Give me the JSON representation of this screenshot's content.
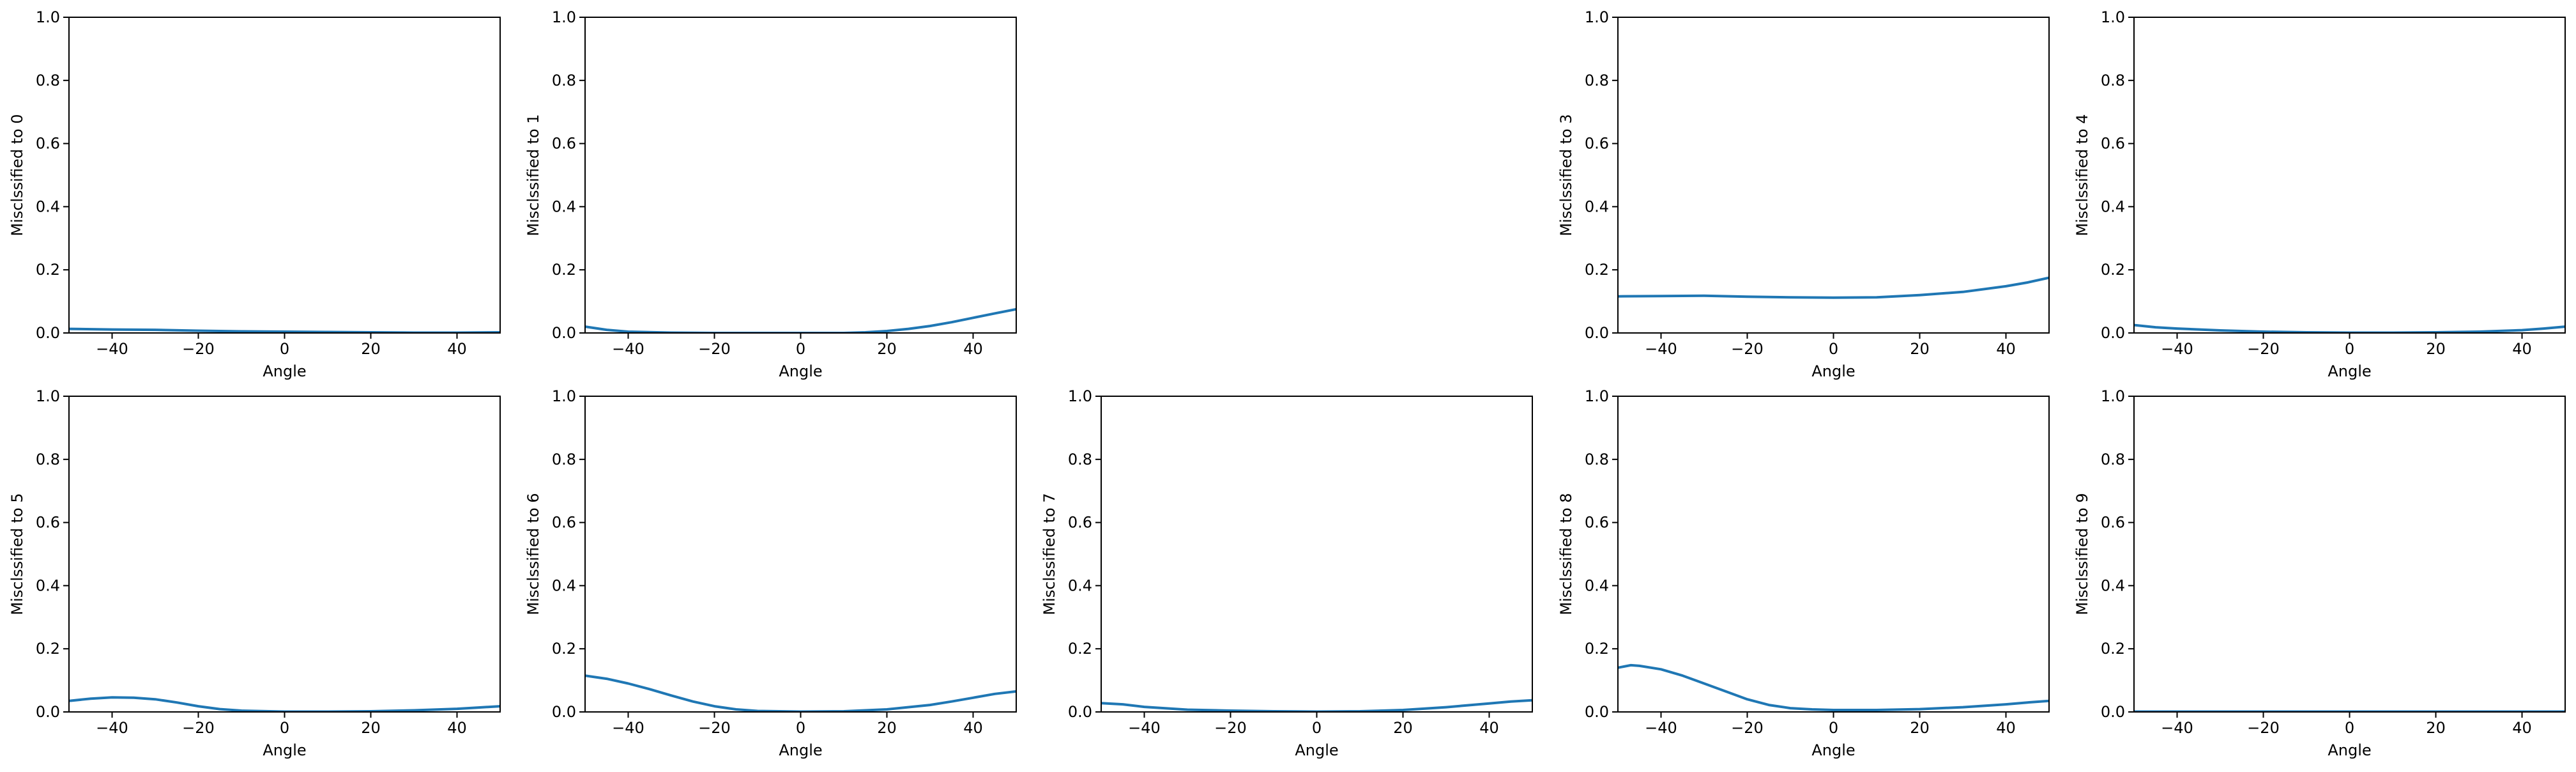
{
  "colors": {
    "line": "#1f77b4",
    "axes": "#000000",
    "background": "#ffffff"
  },
  "chart_data": [
    {
      "type": "line",
      "subplot": "row1-col1",
      "xlabel": "Angle",
      "ylabel": "Misclssified to 0",
      "xlim": [
        -50,
        50
      ],
      "ylim": [
        0,
        1
      ],
      "xticks": [
        -40,
        -20,
        0,
        20,
        40
      ],
      "yticks": [
        0.0,
        0.2,
        0.4,
        0.6,
        0.8,
        1.0
      ],
      "grid": false,
      "series": [
        {
          "x": [
            -50,
            -40,
            -30,
            -20,
            -10,
            0,
            10,
            20,
            30,
            40,
            50
          ],
          "y": [
            0.013,
            0.011,
            0.01,
            0.007,
            0.005,
            0.004,
            0.003,
            0.002,
            0.001,
            0.001,
            0.002
          ]
        }
      ]
    },
    {
      "type": "line",
      "subplot": "row1-col2",
      "xlabel": "Angle",
      "ylabel": "Misclssified to 1",
      "xlim": [
        -50,
        50
      ],
      "ylim": [
        0,
        1
      ],
      "xticks": [
        -40,
        -20,
        0,
        20,
        40
      ],
      "yticks": [
        0.0,
        0.2,
        0.4,
        0.6,
        0.8,
        1.0
      ],
      "grid": false,
      "series": [
        {
          "x": [
            -50,
            -45,
            -40,
            -30,
            -20,
            -10,
            0,
            10,
            15,
            20,
            25,
            30,
            35,
            40,
            45,
            50
          ],
          "y": [
            0.02,
            0.01,
            0.004,
            0.001,
            0.0,
            0.0,
            0.0,
            0.0,
            0.002,
            0.006,
            0.013,
            0.022,
            0.034,
            0.048,
            0.062,
            0.075
          ]
        }
      ]
    },
    {
      "type": "line",
      "subplot": "row1-col4",
      "xlabel": "Angle",
      "ylabel": "Misclssified to 3",
      "xlim": [
        -50,
        50
      ],
      "ylim": [
        0,
        1
      ],
      "xticks": [
        -40,
        -20,
        0,
        20,
        40
      ],
      "yticks": [
        0.0,
        0.2,
        0.4,
        0.6,
        0.8,
        1.0
      ],
      "grid": false,
      "series": [
        {
          "x": [
            -50,
            -40,
            -30,
            -20,
            -10,
            0,
            10,
            20,
            30,
            40,
            45,
            50
          ],
          "y": [
            0.116,
            0.117,
            0.118,
            0.115,
            0.113,
            0.112,
            0.113,
            0.12,
            0.13,
            0.148,
            0.16,
            0.175
          ]
        }
      ]
    },
    {
      "type": "line",
      "subplot": "row1-col5",
      "xlabel": "Angle",
      "ylabel": "Misclssified to 4",
      "xlim": [
        -50,
        50
      ],
      "ylim": [
        0,
        1
      ],
      "xticks": [
        -40,
        -20,
        0,
        20,
        40
      ],
      "yticks": [
        0.0,
        0.2,
        0.4,
        0.6,
        0.8,
        1.0
      ],
      "grid": false,
      "series": [
        {
          "x": [
            -50,
            -45,
            -40,
            -30,
            -20,
            -10,
            0,
            10,
            20,
            30,
            40,
            45,
            50
          ],
          "y": [
            0.025,
            0.018,
            0.014,
            0.008,
            0.004,
            0.002,
            0.001,
            0.001,
            0.002,
            0.004,
            0.009,
            0.014,
            0.02
          ]
        }
      ]
    },
    {
      "type": "line",
      "subplot": "row2-col1",
      "xlabel": "Angle",
      "ylabel": "Misclssified to 5",
      "xlim": [
        -50,
        50
      ],
      "ylim": [
        0,
        1
      ],
      "xticks": [
        -40,
        -20,
        0,
        20,
        40
      ],
      "yticks": [
        0.0,
        0.2,
        0.4,
        0.6,
        0.8,
        1.0
      ],
      "grid": false,
      "series": [
        {
          "x": [
            -50,
            -45,
            -40,
            -35,
            -30,
            -25,
            -20,
            -15,
            -10,
            0,
            10,
            20,
            30,
            40,
            45,
            50
          ],
          "y": [
            0.035,
            0.042,
            0.046,
            0.045,
            0.04,
            0.03,
            0.018,
            0.009,
            0.004,
            0.001,
            0.001,
            0.002,
            0.005,
            0.01,
            0.014,
            0.018
          ]
        }
      ]
    },
    {
      "type": "line",
      "subplot": "row2-col2",
      "xlabel": "Angle",
      "ylabel": "Misclssified to 6",
      "xlim": [
        -50,
        50
      ],
      "ylim": [
        0,
        1
      ],
      "xticks": [
        -40,
        -20,
        0,
        20,
        40
      ],
      "yticks": [
        0.0,
        0.2,
        0.4,
        0.6,
        0.8,
        1.0
      ],
      "grid": false,
      "series": [
        {
          "x": [
            -50,
            -45,
            -40,
            -35,
            -30,
            -25,
            -20,
            -15,
            -10,
            0,
            10,
            20,
            30,
            35,
            40,
            45,
            50
          ],
          "y": [
            0.115,
            0.105,
            0.09,
            0.072,
            0.052,
            0.033,
            0.018,
            0.008,
            0.003,
            0.001,
            0.002,
            0.008,
            0.022,
            0.033,
            0.045,
            0.057,
            0.065
          ]
        }
      ]
    },
    {
      "type": "line",
      "subplot": "row2-col3",
      "xlabel": "Angle",
      "ylabel": "Misclssified to 7",
      "xlim": [
        -50,
        50
      ],
      "ylim": [
        0,
        1
      ],
      "xticks": [
        -40,
        -20,
        0,
        20,
        40
      ],
      "yticks": [
        0.0,
        0.2,
        0.4,
        0.6,
        0.8,
        1.0
      ],
      "grid": false,
      "series": [
        {
          "x": [
            -50,
            -45,
            -40,
            -30,
            -20,
            -10,
            0,
            10,
            20,
            30,
            40,
            45,
            50
          ],
          "y": [
            0.028,
            0.024,
            0.016,
            0.007,
            0.004,
            0.002,
            0.001,
            0.002,
            0.006,
            0.015,
            0.027,
            0.033,
            0.037
          ]
        }
      ]
    },
    {
      "type": "line",
      "subplot": "row2-col4",
      "xlabel": "Angle",
      "ylabel": "Misclssified to 8",
      "xlim": [
        -50,
        50
      ],
      "ylim": [
        0,
        1
      ],
      "xticks": [
        -40,
        -20,
        0,
        20,
        40
      ],
      "yticks": [
        0.0,
        0.2,
        0.4,
        0.6,
        0.8,
        1.0
      ],
      "grid": false,
      "series": [
        {
          "x": [
            -50,
            -47,
            -45,
            -40,
            -35,
            -30,
            -25,
            -20,
            -15,
            -10,
            -5,
            0,
            10,
            20,
            30,
            40,
            45,
            50
          ],
          "y": [
            0.14,
            0.148,
            0.146,
            0.135,
            0.115,
            0.09,
            0.065,
            0.04,
            0.022,
            0.012,
            0.008,
            0.006,
            0.006,
            0.009,
            0.015,
            0.024,
            0.03,
            0.035
          ]
        }
      ]
    },
    {
      "type": "line",
      "subplot": "row2-col5",
      "xlabel": "Angle",
      "ylabel": "Misclssified to 9",
      "xlim": [
        -50,
        50
      ],
      "ylim": [
        0,
        1
      ],
      "xticks": [
        -40,
        -20,
        0,
        20,
        40
      ],
      "yticks": [
        0.0,
        0.2,
        0.4,
        0.6,
        0.8,
        1.0
      ],
      "grid": false,
      "series": [
        {
          "x": [
            -50,
            -25,
            0,
            25,
            50
          ],
          "y": [
            0.001,
            0.001,
            0.001,
            0.001,
            0.001
          ]
        }
      ]
    }
  ]
}
